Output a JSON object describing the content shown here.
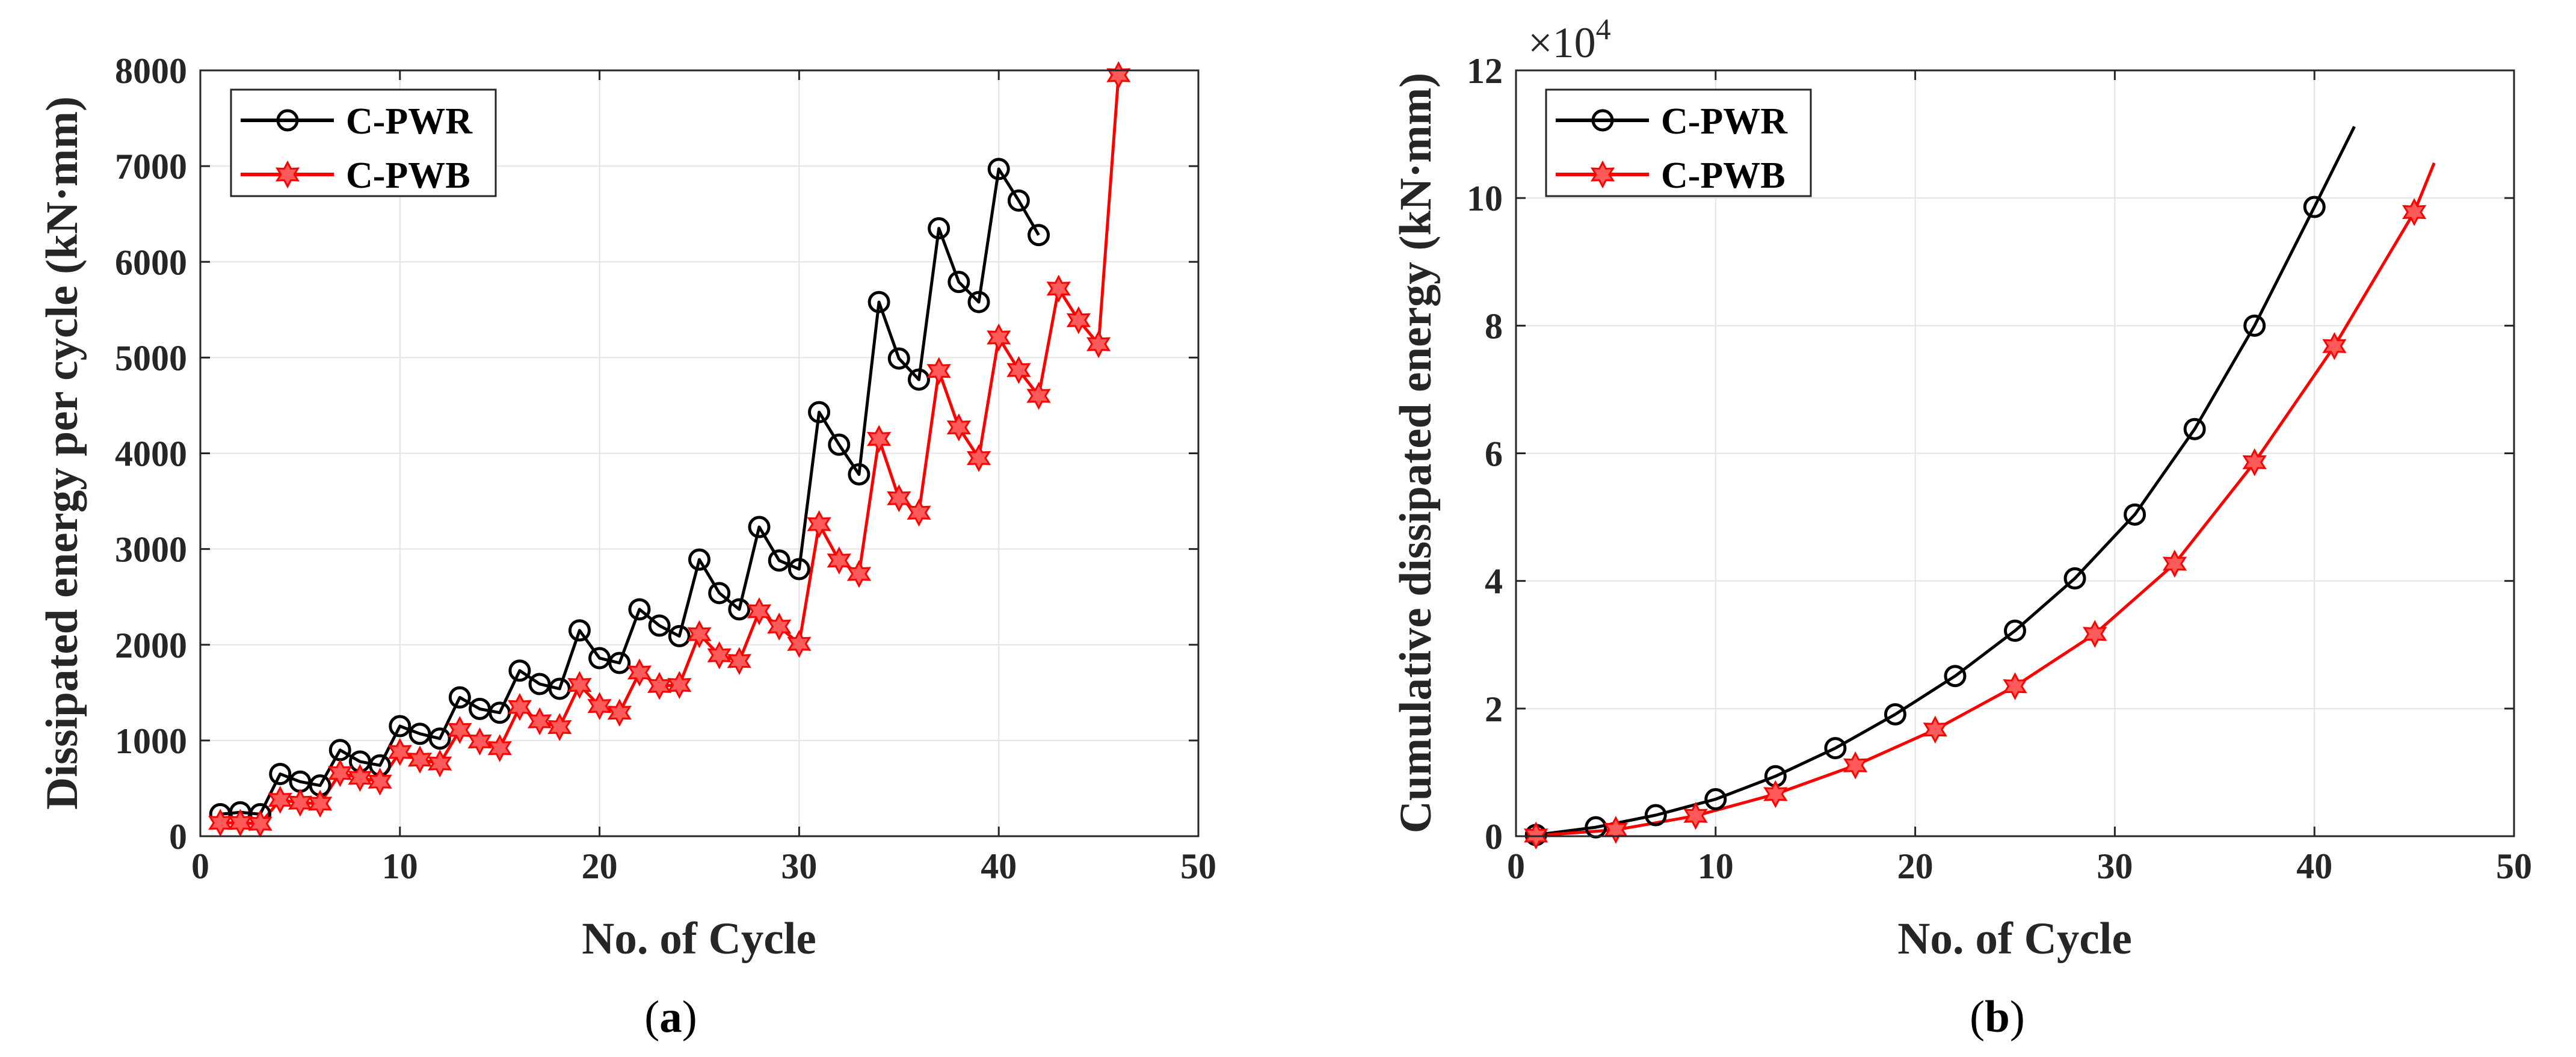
{
  "chart_data": [
    {
      "type": "line",
      "panel_label": "a",
      "xlabel": "No. of Cycle",
      "ylabel": "Dissipated energy per cycle (kN·mm)",
      "xlim": [
        0,
        50
      ],
      "ylim": [
        0,
        8000
      ],
      "xticks": [
        0,
        10,
        20,
        30,
        40,
        50
      ],
      "yticks": [
        0,
        1000,
        2000,
        3000,
        4000,
        5000,
        6000,
        7000,
        8000
      ],
      "grid": true,
      "legend": "top-left",
      "series": [
        {
          "name": "C-PWR",
          "color": "#000000",
          "marker": "circle",
          "x": [
            1,
            2,
            3,
            4,
            5,
            6,
            7,
            8,
            9,
            10,
            11,
            12,
            13,
            14,
            15,
            16,
            17,
            18,
            19,
            20,
            21,
            22,
            23,
            24,
            25,
            26,
            27,
            28,
            29,
            30,
            31,
            32,
            33,
            34,
            35,
            36,
            37,
            38,
            39,
            40,
            41,
            42
          ],
          "y": [
            230,
            250,
            230,
            650,
            570,
            530,
            900,
            780,
            740,
            1150,
            1070,
            1020,
            1450,
            1330,
            1290,
            1730,
            1590,
            1540,
            2150,
            1860,
            1810,
            2370,
            2200,
            2090,
            2890,
            2540,
            2370,
            3230,
            2880,
            2790,
            4430,
            4090,
            3780,
            5580,
            4990,
            4770,
            6350,
            5790,
            5580,
            6970,
            6640,
            6280
          ]
        },
        {
          "name": "C-PWB",
          "color": "#ff0000",
          "marker": "hexagram",
          "x": [
            1,
            2,
            3,
            4,
            5,
            6,
            7,
            8,
            9,
            10,
            11,
            12,
            13,
            14,
            15,
            16,
            17,
            18,
            19,
            20,
            21,
            22,
            23,
            24,
            25,
            26,
            27,
            28,
            29,
            30,
            31,
            32,
            33,
            34,
            35,
            36,
            37,
            38,
            39,
            40,
            41,
            42,
            43,
            44,
            45,
            46
          ],
          "y": [
            140,
            140,
            130,
            380,
            350,
            340,
            660,
            610,
            570,
            880,
            800,
            760,
            1110,
            990,
            920,
            1350,
            1200,
            1140,
            1580,
            1360,
            1290,
            1710,
            1570,
            1580,
            2110,
            1890,
            1830,
            2350,
            2190,
            2010,
            3260,
            2880,
            2740,
            4150,
            3530,
            3380,
            4860,
            4270,
            3950,
            5210,
            4870,
            4600,
            5720,
            5390,
            5140,
            7950
          ]
        }
      ]
    },
    {
      "type": "line",
      "panel_label": "b",
      "xlabel": "No. of Cycle",
      "ylabel": "Cumulative dissipated energy (kN·mm)",
      "y_multiplier_label": "×10",
      "y_multiplier_exp": "4",
      "xlim": [
        0,
        50
      ],
      "ylim": [
        0,
        12
      ],
      "xticks": [
        0,
        10,
        20,
        30,
        40,
        50
      ],
      "yticks": [
        0,
        2,
        4,
        6,
        8,
        10,
        12
      ],
      "grid": true,
      "legend": "top-left",
      "series": [
        {
          "name": "C-PWR",
          "color": "#000000",
          "marker": "circle",
          "x": [
            1,
            4,
            7,
            10,
            13,
            16,
            19,
            22,
            25,
            28,
            31,
            34,
            37,
            40,
            42
          ],
          "y": [
            0.02,
            0.14,
            0.33,
            0.58,
            0.94,
            1.38,
            1.91,
            2.51,
            3.22,
            4.04,
            5.04,
            6.38,
            8.0,
            9.86,
            11.12
          ],
          "marker_x": [
            1,
            4,
            7,
            10,
            13,
            16,
            19,
            22,
            25,
            28,
            31,
            34,
            37,
            40
          ]
        },
        {
          "name": "C-PWB",
          "color": "#ff0000",
          "marker": "hexagram",
          "x": [
            1,
            5,
            9,
            13,
            17,
            21,
            25,
            29,
            33,
            37,
            41,
            45,
            46
          ],
          "y": [
            0.01,
            0.1,
            0.32,
            0.66,
            1.11,
            1.67,
            2.35,
            3.17,
            4.27,
            5.86,
            7.68,
            9.78,
            10.55
          ],
          "marker_x": [
            1,
            5,
            9,
            13,
            17,
            21,
            25,
            29,
            33,
            37,
            41,
            45
          ]
        }
      ]
    }
  ]
}
